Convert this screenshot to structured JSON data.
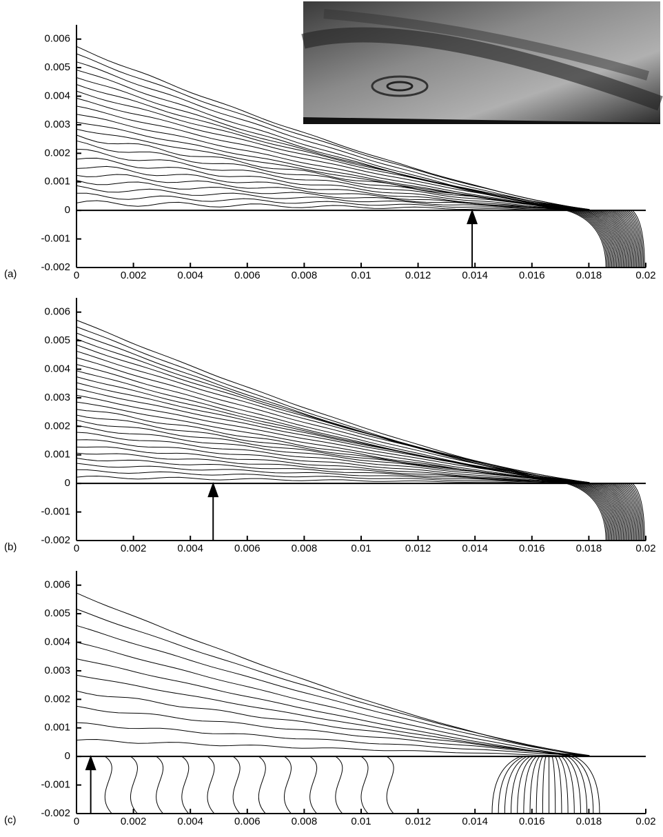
{
  "chart_data": [
    {
      "type": "contour",
      "label": "(a)",
      "xlim": [
        0,
        0.02
      ],
      "ylim": [
        -0.002,
        0.0065
      ],
      "xticks": [
        0,
        0.002,
        0.004,
        0.006,
        0.008,
        0.01,
        0.012,
        0.014,
        0.016,
        0.018,
        0.02
      ],
      "yticks": [
        -0.002,
        -0.001,
        0,
        0.001,
        0.002,
        0.003,
        0.004,
        0.005,
        0.006
      ]
    },
    {
      "type": "contour",
      "label": "(b)",
      "xlim": [
        0,
        0.02
      ],
      "ylim": [
        -0.002,
        0.0065
      ],
      "xticks": [
        0,
        0.002,
        0.004,
        0.006,
        0.008,
        0.01,
        0.012,
        0.014,
        0.016,
        0.018,
        0.02
      ],
      "yticks": [
        -0.002,
        -0.001,
        0,
        0.001,
        0.002,
        0.003,
        0.004,
        0.005,
        0.006
      ]
    },
    {
      "type": "contour",
      "label": "(c)",
      "xlim": [
        0,
        0.02
      ],
      "ylim": [
        -0.002,
        0.0065
      ],
      "xticks": [
        0,
        0.002,
        0.004,
        0.006,
        0.008,
        0.01,
        0.012,
        0.014,
        0.016,
        0.018,
        0.02
      ],
      "yticks": [
        -0.002,
        -0.001,
        0,
        0.001,
        0.002,
        0.003,
        0.004,
        0.005,
        0.006
      ]
    }
  ]
}
